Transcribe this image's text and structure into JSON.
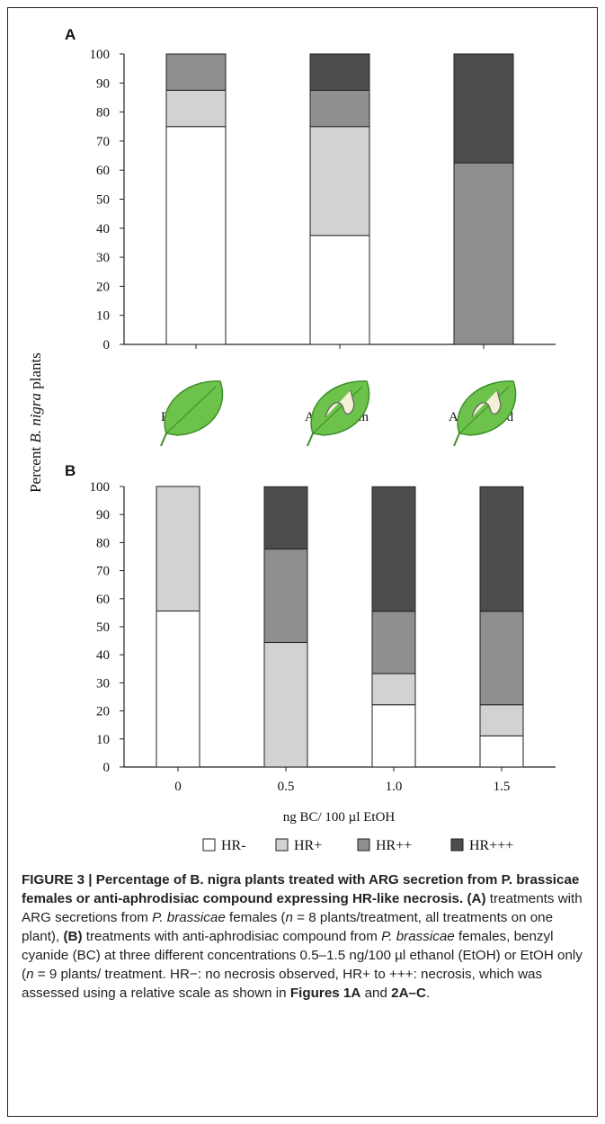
{
  "y_axis_label": {
    "prefix": "Percent",
    "italic": "B. nigra",
    "suffix": "plants"
  },
  "legend": [
    {
      "label": "HR-",
      "color": "#ffffff"
    },
    {
      "label": "HR+",
      "color": "#d2d2d2"
    },
    {
      "label": "HR++",
      "color": "#8f8f8f"
    },
    {
      "label": "HR+++",
      "color": "#4d4d4d"
    }
  ],
  "chart_data": [
    {
      "type": "bar",
      "panel": "A",
      "stacked": true,
      "categories": [
        "PBS",
        "ARG virgin",
        "ARG mated"
      ],
      "ylim": [
        0,
        100
      ],
      "yticks": [
        0,
        10,
        20,
        30,
        40,
        50,
        60,
        70,
        80,
        90,
        100
      ],
      "xlabel": "",
      "series": [
        {
          "name": "HR-",
          "values": [
            75,
            37.5,
            0
          ]
        },
        {
          "name": "HR+",
          "values": [
            12.5,
            37.5,
            0
          ]
        },
        {
          "name": "HR++",
          "values": [
            12.5,
            12.5,
            62.5
          ]
        },
        {
          "name": "HR+++",
          "values": [
            0,
            12.5,
            37.5
          ]
        }
      ]
    },
    {
      "type": "bar",
      "panel": "B",
      "stacked": true,
      "categories": [
        "0",
        "0.5",
        "1.0",
        "1.5"
      ],
      "ylim": [
        0,
        100
      ],
      "yticks": [
        0,
        10,
        20,
        30,
        40,
        50,
        60,
        70,
        80,
        90,
        100
      ],
      "xlabel": "ng BC/ 100 µl EtOH",
      "series": [
        {
          "name": "HR-",
          "values": [
            55.6,
            0,
            22.2,
            11.1
          ]
        },
        {
          "name": "HR+",
          "values": [
            44.4,
            44.4,
            11.1,
            11.1
          ]
        },
        {
          "name": "HR++",
          "values": [
            0,
            33.3,
            22.2,
            33.3
          ]
        },
        {
          "name": "HR+++",
          "values": [
            0,
            22.2,
            44.4,
            44.4
          ]
        }
      ]
    }
  ],
  "caption": {
    "title": "FIGURE 3 | Percentage of B. nigra plants treated with ARG secretion from P. brassicae females or anti-aphrodisiac compound expressing HR-like necrosis.",
    "b1": "(A)",
    "t1": " treatments with ARG secretions from ",
    "i1": "P. brassicae",
    "t2": " females (",
    "n1": "n",
    "t3": " = 8 plants/treatment, all treatments on one plant), ",
    "b2": "(B)",
    "t4": " treatments with anti-aphrodisiac compound from ",
    "i2": "P. brassicae",
    "t5": " females, benzyl cyanide (BC) at three different concentrations 0.5–1.5 ng/100 µl ethanol (EtOH) or EtOH only (",
    "n2": "n",
    "t6": " = 9 plants/ treatment. HR−: no necrosis observed, HR+ to +++: necrosis, which was assessed using a relative scale as shown in ",
    "b3": "Figures 1A",
    "t7": " and ",
    "b4": "2A–C",
    "t8": "."
  }
}
